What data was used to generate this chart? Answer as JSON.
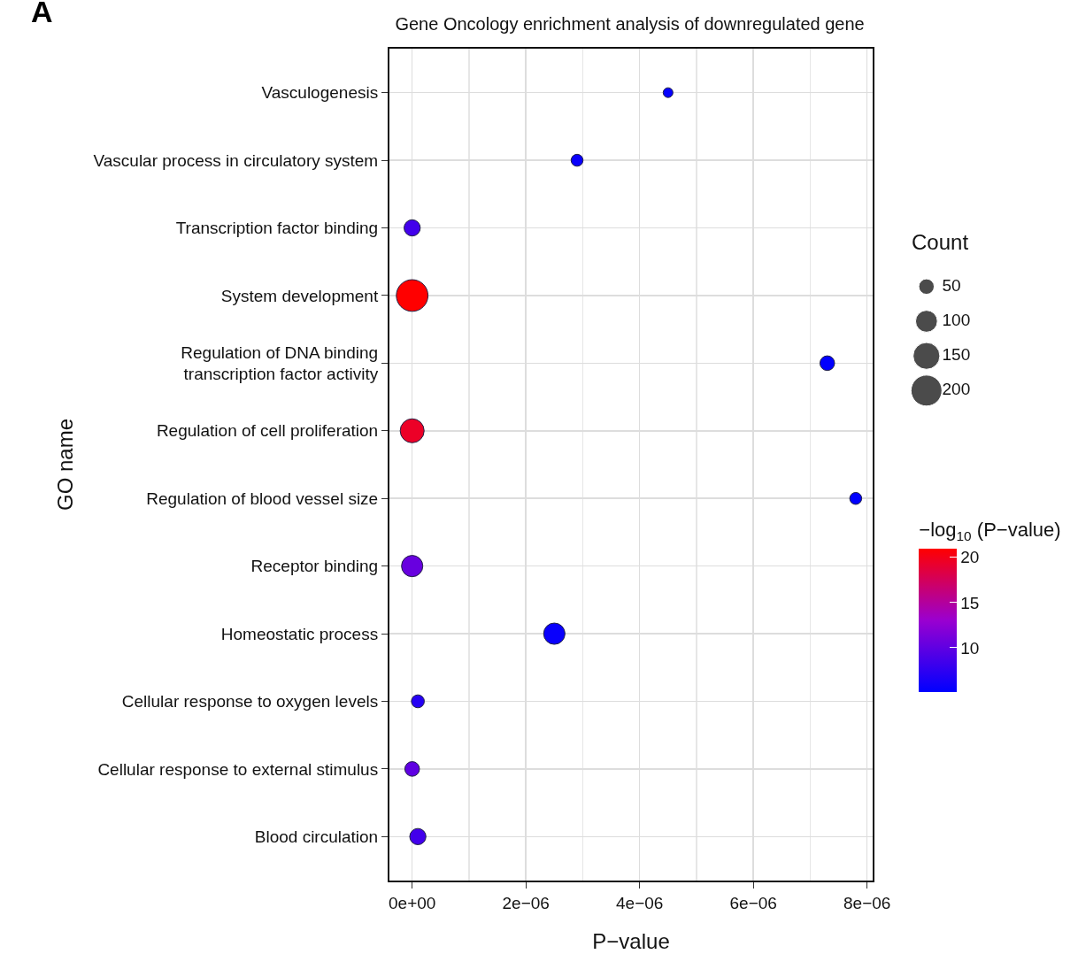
{
  "chart_data": {
    "type": "bubble",
    "orientation": "horizontal",
    "title": "Gene Oncology enrichment analysis of downregulated gene",
    "annotations": [
      "A"
    ],
    "xlabel": "P−value",
    "ylabel": "GO name",
    "legend_title": "Count",
    "clabel": "−log$_{10}$ (P−value)",
    "categories": [
      "Vasculogenesis",
      "Vascular process in circulatory system",
      "Transcription factor binding",
      "System development",
      "Regulation of DNA binding\ntranscription factor activity",
      "Regulation of cell proliferation",
      "Regulation of blood vessel size",
      "Receptor binding",
      "Homeostatic process",
      "Cellular response to oxygen levels",
      "Cellular response to external stimulus",
      "Blood circulation"
    ],
    "values": [
      4.5e-06,
      2.9e-06,
      0,
      0,
      7.3e-06,
      0,
      7.8e-06,
      0,
      2.5e-06,
      1e-07,
      0,
      1e-07
    ],
    "sizes": [
      20,
      30,
      55,
      210,
      45,
      120,
      30,
      95,
      95,
      35,
      45,
      55
    ],
    "cvalues": [
      5.35,
      5.55,
      8.5,
      21,
      5.14,
      19.5,
      5.11,
      10.5,
      5.6,
      7,
      10,
      8.5
    ],
    "size_legend": [
      50,
      100,
      150,
      200
    ],
    "clim": [
      5.11,
      21
    ],
    "cticks": [
      10,
      15,
      20
    ],
    "xlim": [
      -4e-07,
      8.1e-06
    ],
    "xticks": [
      {
        "value": 0,
        "label": "0e+00"
      },
      {
        "value": 2e-06,
        "label": "2e−06"
      },
      {
        "value": 4e-06,
        "label": "4e−06"
      },
      {
        "value": 6e-06,
        "label": "6e−06"
      },
      {
        "value": 8e-06,
        "label": "8e−06"
      }
    ],
    "grid": true,
    "marker": "circle"
  }
}
